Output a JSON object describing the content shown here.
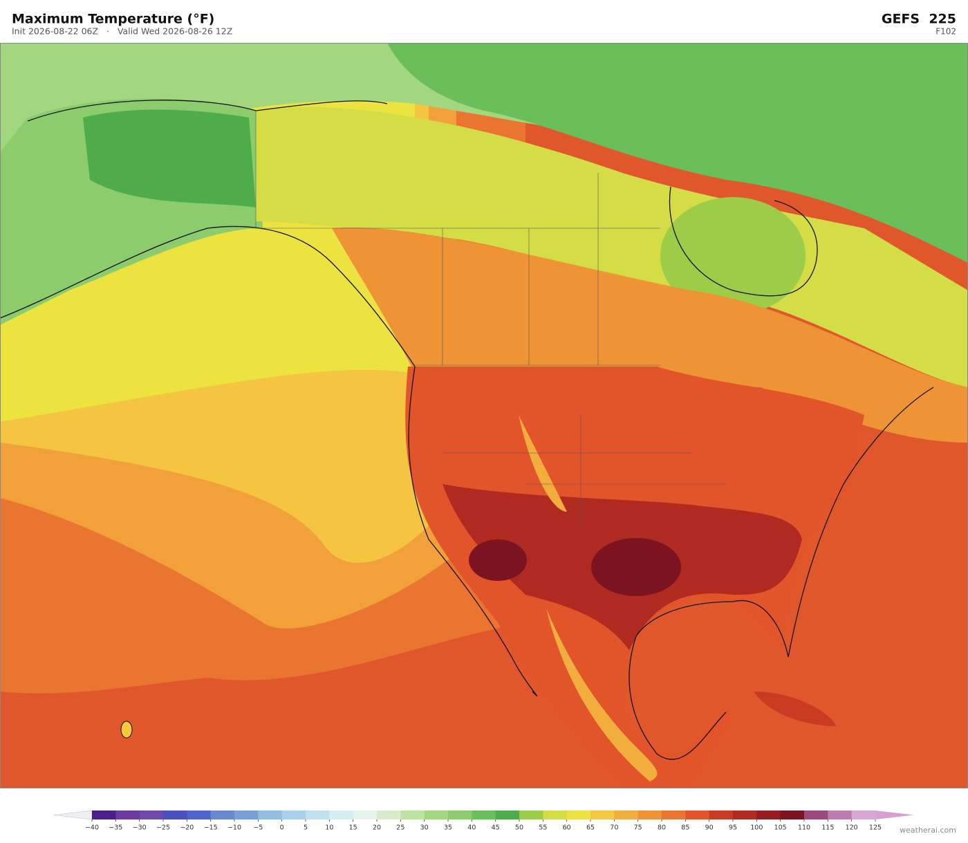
{
  "header": {
    "title": "Maximum Temperature  (°F)",
    "subtitle": "Init 2026-08-22 06Z   ·   Valid Wed 2026-08-26 12Z",
    "model": "GEFS  225",
    "forecast_hour": "F102"
  },
  "colorbar": {
    "ticks": [
      {
        "value": -40,
        "label": "−40"
      },
      {
        "value": -35,
        "label": "−35"
      },
      {
        "value": -30,
        "label": "−30"
      },
      {
        "value": -25,
        "label": "−25"
      },
      {
        "value": -20,
        "label": "−20"
      },
      {
        "value": -15,
        "label": "−15"
      },
      {
        "value": -10,
        "label": "−10"
      },
      {
        "value": -5,
        "label": "−5"
      },
      0,
      5,
      10,
      15,
      20,
      25,
      30,
      35,
      40,
      45,
      50,
      55,
      60,
      65,
      70,
      75,
      80,
      85,
      90,
      95,
      100,
      105,
      110,
      115,
      120,
      125
    ],
    "colors": [
      "#4a1f8c",
      "#6a3a9e",
      "#6f4aaa",
      "#4b4fc0",
      "#4f63cc",
      "#6a88d0",
      "#78a0d8",
      "#92bde2",
      "#a9d0ea",
      "#c2e1ef",
      "#d8edf3",
      "#e6f3ea",
      "#d6eccb",
      "#bde3a0",
      "#a3d77f",
      "#8ccc6c",
      "#6bbf5a",
      "#4ead4a",
      "#9ccc48",
      "#d4dc46",
      "#ece240",
      "#f5c842",
      "#f2ae3c",
      "#ef9436",
      "#ea7530",
      "#e2542a",
      "#c83a22",
      "#b02a22",
      "#951c20",
      "#7b1420",
      "#9c4a7e",
      "#c07ab0",
      "#d8a8d4"
    ],
    "under_color": "#f0eef4",
    "over_color": "#d8a0d0"
  },
  "footer": {
    "credit": "weatherai.com"
  }
}
